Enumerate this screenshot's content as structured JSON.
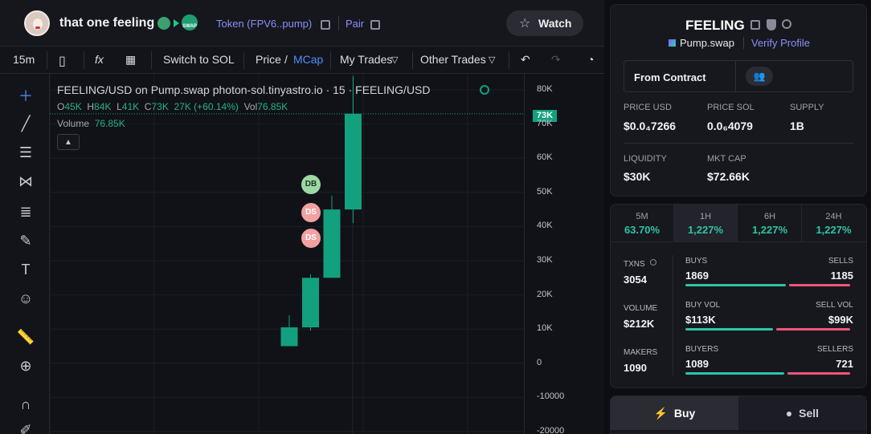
{
  "header": {
    "title": "that one feeling",
    "swap_badge": "SWAP",
    "token_link": "Token (FPV6..pump)",
    "pair_link": "Pair",
    "watch_label": "Watch"
  },
  "toolbar": {
    "interval": "15m",
    "fx": "fx",
    "switch": "Switch to SOL",
    "price": "Price",
    "slash": "/",
    "mcap": "MCap",
    "my_trades": "My Trades",
    "other_trades": "Other Trades"
  },
  "chart": {
    "legend": "FEELING/USD on Pump.swap photon-sol.tinyastro.io · 15 · FEELING/USD",
    "ohlc": {
      "o_label": "O",
      "o": "45K",
      "h_label": "H",
      "h": "84K",
      "l_label": "L",
      "l": "41K",
      "c_label": "C",
      "c": "73K",
      "change": "27K (+60.14%)",
      "vol_label": "Vol",
      "vol": "76.85K"
    },
    "volume_label": "Volume",
    "volume_value": "76.85K",
    "collapse_icon": "chevron-up-icon",
    "price_tag": "73K",
    "markers": [
      "DB",
      "DS",
      "DS"
    ],
    "y_ticks": [
      "80K",
      "70K",
      "60K",
      "50K",
      "40K",
      "30K",
      "20K",
      "10K",
      "0",
      "-10000",
      "-20000"
    ],
    "colors": {
      "up": "#13a07e",
      "grid": "#1d1e25"
    }
  },
  "chart_data": {
    "type": "candlestick",
    "ylim": [
      -20000,
      80000
    ],
    "candles": [
      {
        "o": 5000,
        "h": 14000,
        "l": 5000,
        "c": 10500
      },
      {
        "o": 10500,
        "h": 26000,
        "l": 9500,
        "c": 25000
      },
      {
        "o": 25000,
        "h": 49000,
        "l": 25000,
        "c": 45000
      },
      {
        "o": 45000,
        "h": 84000,
        "l": 41000,
        "c": 73000
      }
    ]
  },
  "token": {
    "symbol": "FEELING",
    "dex": "Pump.swap",
    "verify": "Verify Profile",
    "from_contract": "From Contract",
    "stats": {
      "price_usd_label": "PRICE USD",
      "price_usd": "$0.0₄7266",
      "price_sol_label": "PRICE SOL",
      "price_sol": "0.0₆4079",
      "supply_label": "SUPPLY",
      "supply": "1B",
      "liquidity_label": "LIQUIDITY",
      "liquidity": "$30K",
      "mktcap_label": "MKT CAP",
      "mktcap": "$72.66K"
    }
  },
  "timeframes": [
    {
      "label": "5M",
      "value": "63.70%"
    },
    {
      "label": "1H",
      "value": "1,227%"
    },
    {
      "label": "6H",
      "value": "1,227%"
    },
    {
      "label": "24H",
      "value": "1,227%"
    }
  ],
  "txns": {
    "txns_label": "TXNS",
    "txns": "3054",
    "volume_label": "VOLUME",
    "volume": "$212K",
    "makers_label": "MAKERS",
    "makers": "1090",
    "buys_label": "BUYS",
    "buys": "1869",
    "sells_label": "SELLS",
    "sells": "1185",
    "buyvol_label": "BUY VOL",
    "buyvol": "$113K",
    "sellvol_label": "SELL VOL",
    "sellvol": "$99K",
    "buyers_label": "BUYERS",
    "buyers": "1089",
    "sellers_label": "SELLERS",
    "sellers": "721",
    "buy_share": 0.61,
    "buyvol_share": 0.53,
    "buyer_share": 0.6
  },
  "trade": {
    "buy": "Buy",
    "sell": "Sell"
  }
}
